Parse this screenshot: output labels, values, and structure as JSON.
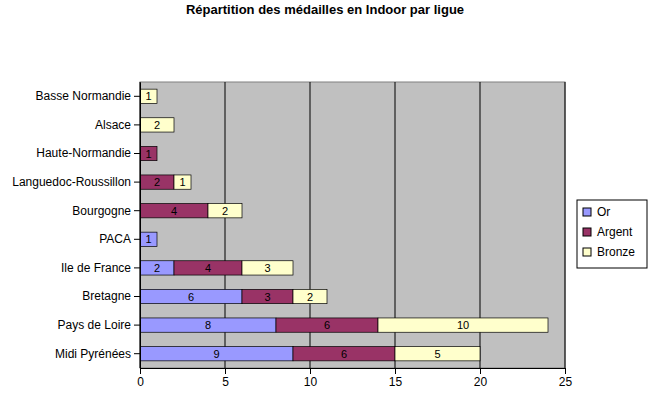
{
  "chart_data": {
    "type": "bar",
    "title": "Répartition des médailles en Indoor par ligue",
    "orientation": "horizontal",
    "stacked": true,
    "data_labels": true,
    "grid": true,
    "legend": "right",
    "categories": [
      "Midi Pyrénées",
      "Pays de Loire",
      "Bretagne",
      "Ile de France",
      "PACA",
      "Bourgogne",
      "Languedoc-Roussillon",
      "Haute-Normandie",
      "Alsace",
      "Basse Normandie"
    ],
    "series": [
      {
        "name": "Or",
        "color": "#9999ff",
        "values": [
          9,
          8,
          6,
          2,
          1,
          null,
          null,
          null,
          null,
          null
        ]
      },
      {
        "name": "Argent",
        "color": "#993366",
        "values": [
          6,
          6,
          3,
          4,
          null,
          4,
          2,
          1,
          null,
          null
        ]
      },
      {
        "name": "Bronze",
        "color": "#ffffcc",
        "values": [
          5,
          10,
          2,
          3,
          null,
          2,
          1,
          null,
          2,
          1
        ]
      }
    ],
    "xlim": [
      0,
      25
    ],
    "xticks": [
      0,
      5,
      10,
      15,
      20,
      25
    ]
  }
}
